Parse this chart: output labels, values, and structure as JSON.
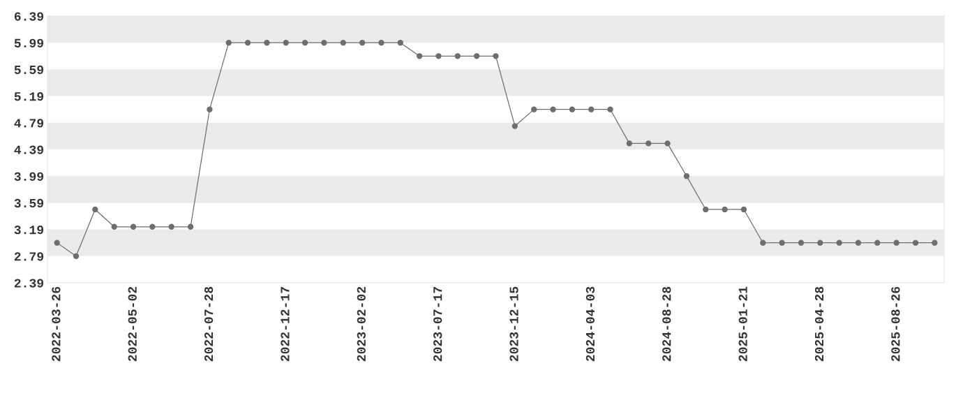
{
  "chart_data": {
    "type": "line",
    "categories": [
      "2022-03-26",
      null,
      null,
      null,
      "2022-05-02",
      null,
      null,
      null,
      "2022-07-28",
      null,
      null,
      null,
      "2022-12-17",
      null,
      null,
      null,
      "2023-02-02",
      null,
      null,
      null,
      "2023-07-17",
      null,
      null,
      null,
      "2023-12-15",
      null,
      null,
      null,
      "2024-04-03",
      null,
      null,
      null,
      "2024-08-28",
      null,
      null,
      null,
      "2025-01-21",
      null,
      null,
      null,
      "2025-04-28",
      null,
      null,
      null,
      "2025-08-26",
      null,
      null
    ],
    "series": [
      {
        "color": "#6e6e6e",
        "values": [
          2.99,
          2.79,
          3.49,
          3.23,
          3.23,
          3.23,
          3.23,
          3.23,
          4.99,
          5.99,
          5.99,
          5.99,
          5.99,
          5.99,
          5.99,
          5.99,
          5.99,
          5.99,
          5.99,
          5.79,
          5.79,
          5.79,
          5.79,
          5.79,
          4.74,
          4.99,
          4.99,
          4.99,
          4.99,
          4.99,
          4.48,
          4.48,
          4.48,
          3.99,
          3.49,
          3.49,
          3.49,
          2.99,
          2.99,
          2.99,
          2.99,
          2.99,
          2.99,
          2.99,
          2.99,
          2.99,
          2.99
        ]
      }
    ],
    "ylim": [
      2.39,
      6.39
    ],
    "yticks": [
      2.39,
      2.79,
      3.19,
      3.59,
      3.99,
      4.39,
      4.79,
      5.19,
      5.59,
      5.99,
      6.39
    ],
    "bands": [
      {
        "axis": "y",
        "from": 2.79,
        "to": 3.19,
        "color": "#ebebeb"
      },
      {
        "axis": "y",
        "from": 3.59,
        "to": 3.99,
        "color": "#ebebeb"
      },
      {
        "axis": "y",
        "from": 4.39,
        "to": 4.79,
        "color": "#ebebeb"
      },
      {
        "axis": "y",
        "from": 5.19,
        "to": 5.59,
        "color": "#ebebeb"
      },
      {
        "axis": "y",
        "from": 5.99,
        "to": 6.39,
        "color": "#ebebeb"
      }
    ],
    "grid": false,
    "marker": "circle",
    "line_style": "solid",
    "legend": false
  }
}
